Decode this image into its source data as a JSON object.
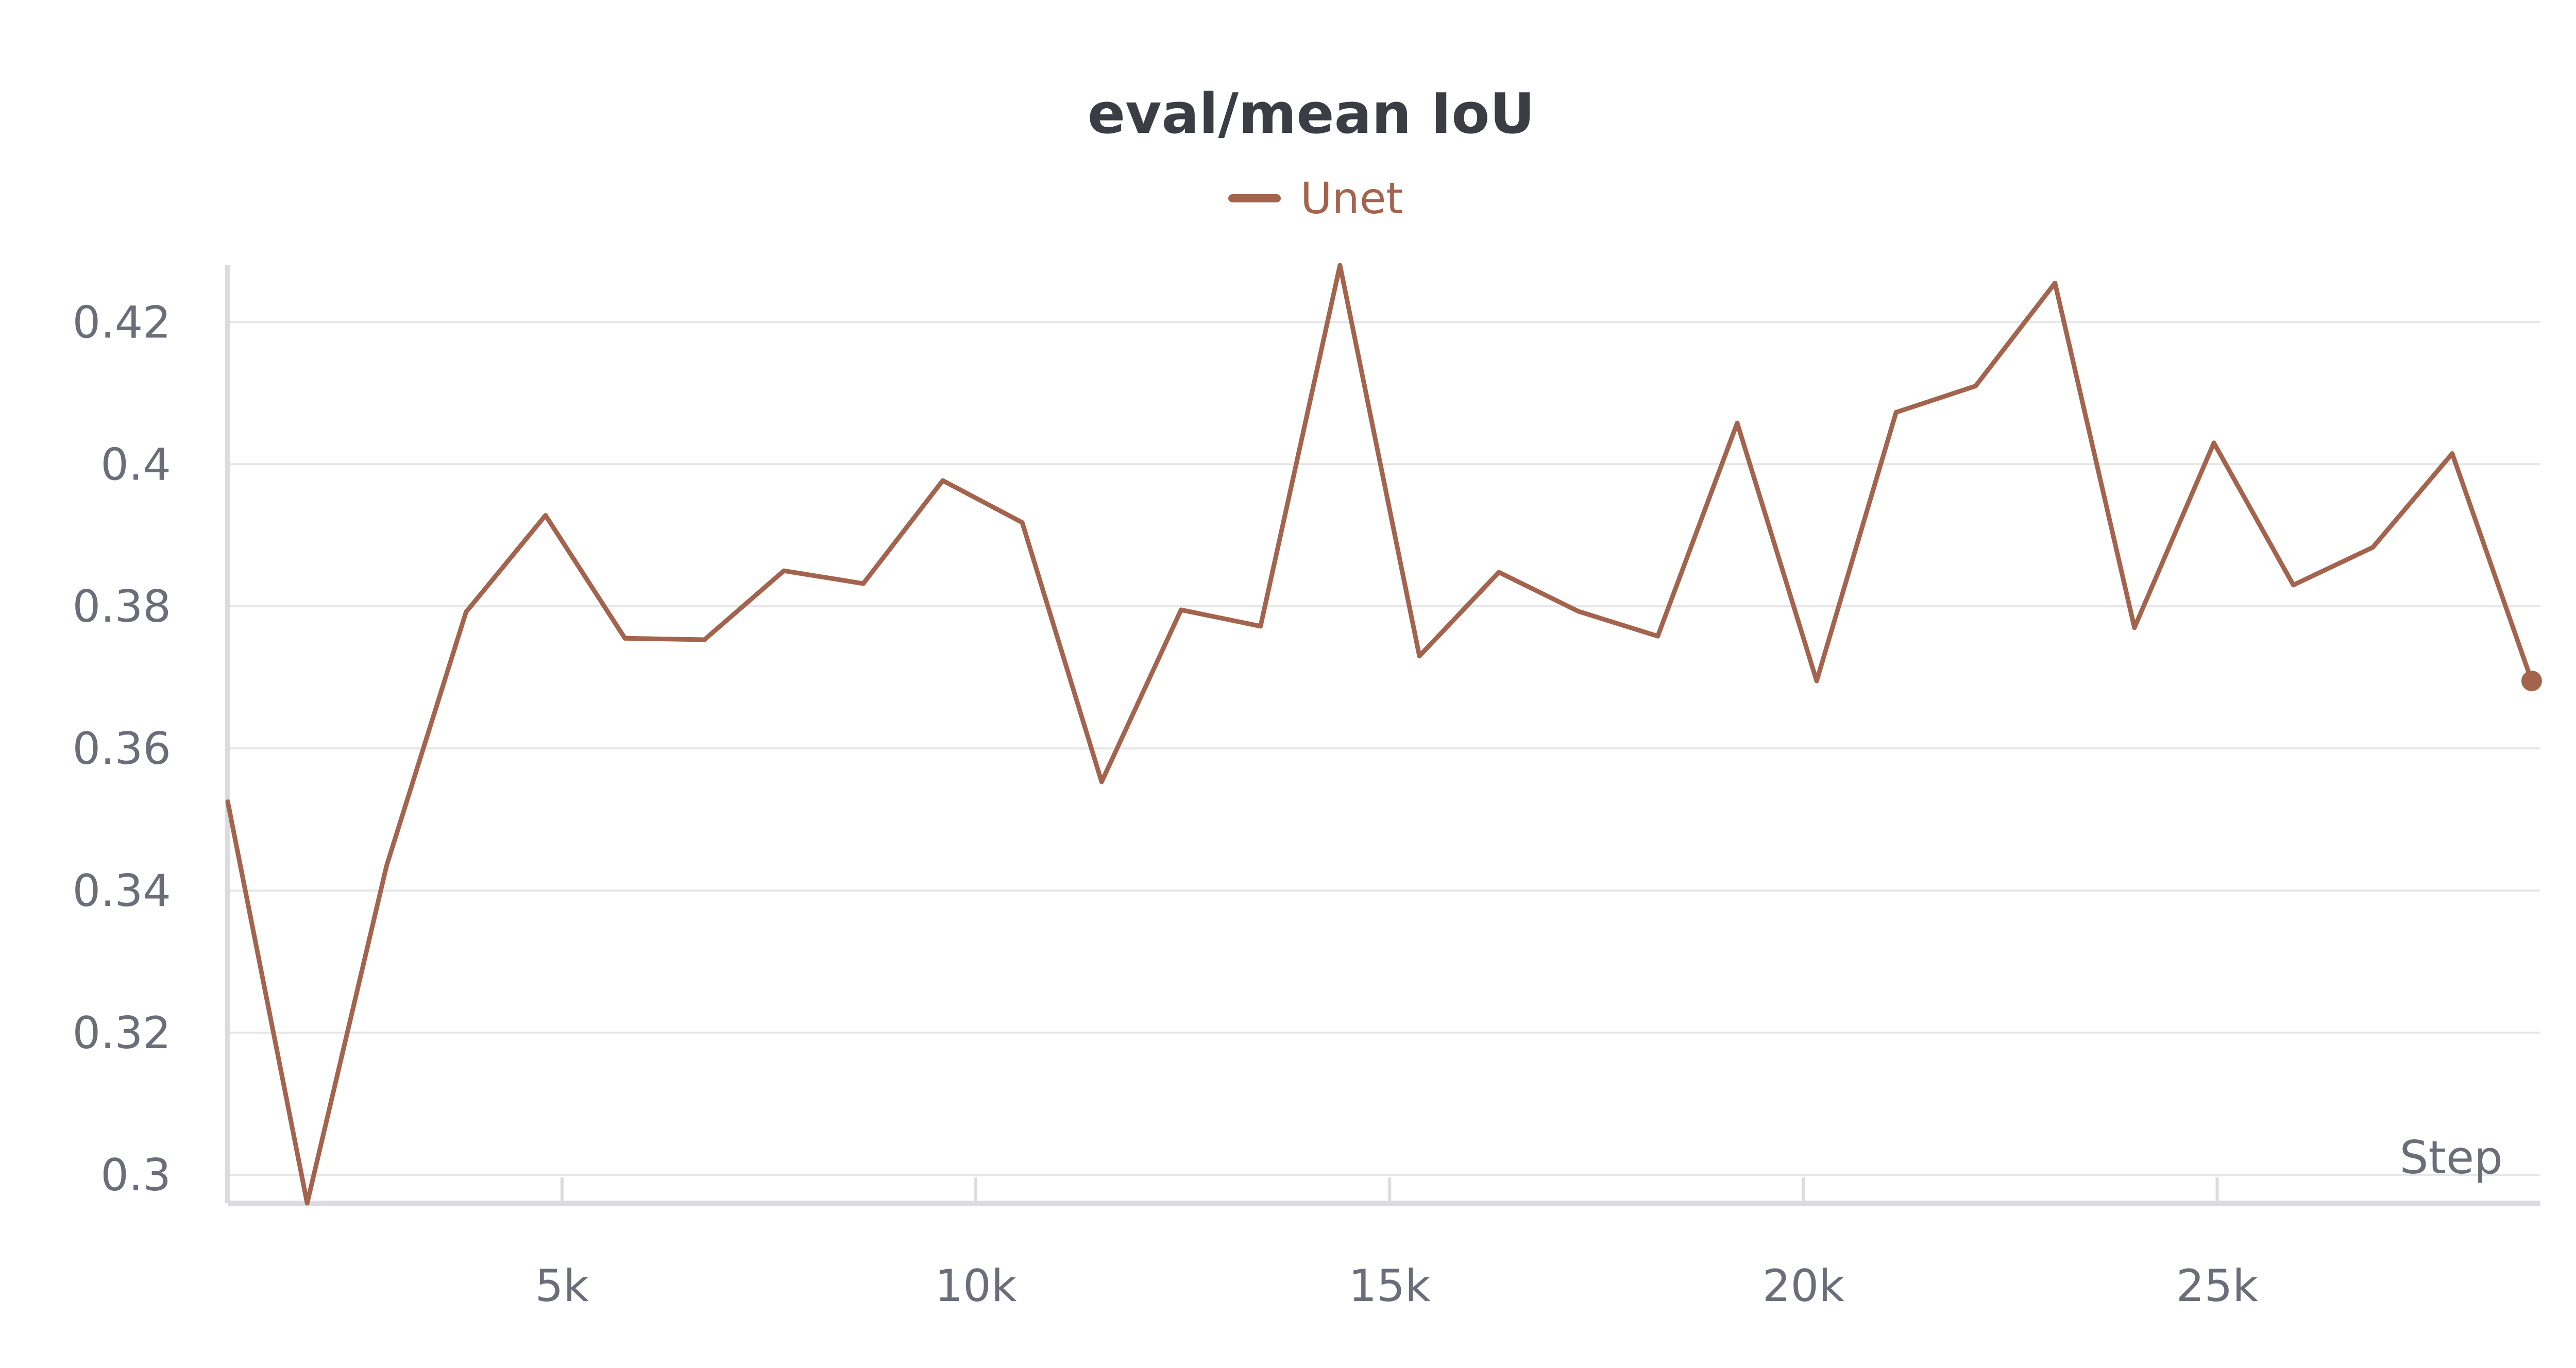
{
  "chart_data": {
    "type": "line",
    "title": "eval/mean IoU",
    "xlabel": "Step",
    "ylabel": "",
    "xlim": [
      960,
      28900
    ],
    "ylim": [
      0.296,
      0.428
    ],
    "grid": true,
    "legend_position": "top-center",
    "xticks": [
      5000,
      10000,
      15000,
      20000,
      25000
    ],
    "xtick_labels": [
      "5k",
      "10k",
      "15k",
      "20k",
      "25k"
    ],
    "yticks": [
      0.3,
      0.32,
      0.34,
      0.36,
      0.38,
      0.4,
      0.42
    ],
    "ytick_labels": [
      "0.3",
      "0.32",
      "0.34",
      "0.36",
      "0.38",
      "0.4",
      "0.42"
    ],
    "series": [
      {
        "name": "Unet",
        "color": "#a3634d",
        "x": [
          960,
          1920,
          2880,
          3840,
          4800,
          5760,
          6720,
          7680,
          8640,
          9600,
          10560,
          11520,
          12480,
          13440,
          14400,
          15360,
          16320,
          17280,
          18240,
          19200,
          20160,
          21120,
          22080,
          23040,
          24000,
          24960,
          25920,
          26880,
          27840,
          28800
        ],
        "y": [
          0.3525,
          0.296,
          0.3435,
          0.3792,
          0.3928,
          0.3755,
          0.3753,
          0.385,
          0.3832,
          0.3977,
          0.3918,
          0.3553,
          0.3795,
          0.3772,
          0.428,
          0.373,
          0.3848,
          0.3793,
          0.3758,
          0.4058,
          0.3695,
          0.4073,
          0.411,
          0.4255,
          0.377,
          0.403,
          0.383,
          0.3883,
          0.4015,
          0.3695
        ]
      }
    ]
  }
}
